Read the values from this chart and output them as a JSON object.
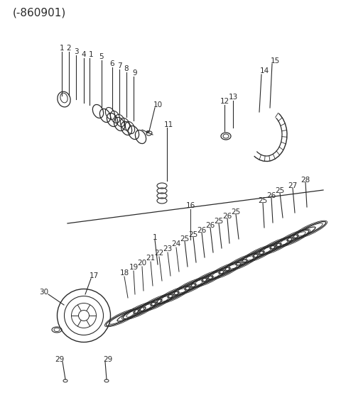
{
  "title": "(-860901)",
  "bg_color": "#ffffff",
  "line_color": "#2a2a2a",
  "title_fontsize": 11,
  "label_fontsize": 7.5,
  "fig_width": 4.8,
  "fig_height": 5.81
}
